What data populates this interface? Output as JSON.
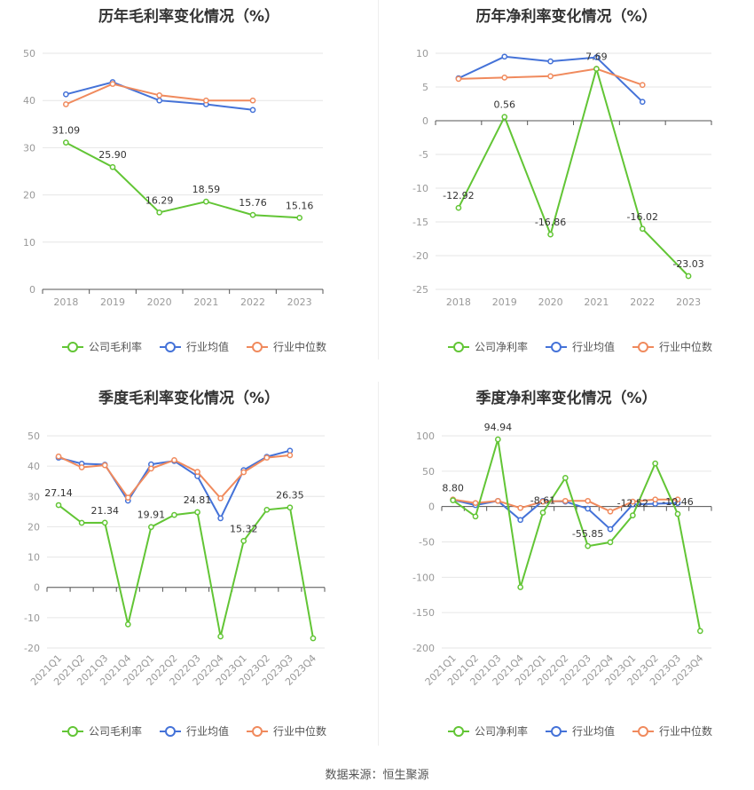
{
  "source": "数据来源：恒生聚源",
  "colors": {
    "company": "#62c535",
    "avg": "#4472d8",
    "median": "#f08a5d"
  },
  "chart_data": [
    {
      "type": "line",
      "title": "历年毛利率变化情况（%）",
      "categories": [
        "2018",
        "2019",
        "2020",
        "2021",
        "2022",
        "2023"
      ],
      "ylim": [
        0,
        50
      ],
      "yticks": [
        0,
        10,
        20,
        30,
        40,
        50
      ],
      "series": [
        {
          "name": "公司毛利率",
          "values": [
            31.09,
            25.9,
            16.29,
            18.59,
            15.76,
            15.16
          ]
        },
        {
          "name": "行业均值",
          "values": [
            41.3,
            43.9,
            40.0,
            39.2,
            38.0,
            null
          ]
        },
        {
          "name": "行业中位数",
          "values": [
            39.2,
            43.5,
            41.1,
            40.0,
            40.0,
            null
          ]
        }
      ],
      "labels": [
        "31.09",
        "25.90",
        "16.29",
        "18.59",
        "15.76",
        "15.16"
      ],
      "rotate_ticks": false
    },
    {
      "type": "line",
      "title": "历年净利率变化情况（%）",
      "categories": [
        "2018",
        "2019",
        "2020",
        "2021",
        "2022",
        "2023"
      ],
      "ylim": [
        -25,
        10
      ],
      "yticks": [
        -25,
        -20,
        -15,
        -10,
        -5,
        0,
        5,
        10
      ],
      "series": [
        {
          "name": "公司净利率",
          "values": [
            -12.92,
            0.56,
            -16.86,
            7.69,
            -16.02,
            -23.03
          ]
        },
        {
          "name": "行业均值",
          "values": [
            6.3,
            9.5,
            8.8,
            9.4,
            2.8,
            null
          ]
        },
        {
          "name": "行业中位数",
          "values": [
            6.2,
            6.4,
            6.6,
            7.7,
            5.3,
            null
          ]
        }
      ],
      "labels": [
        "-12.92",
        "0.56",
        "-16.86",
        "7.69",
        "-16.02",
        "-23.03"
      ],
      "rotate_ticks": false
    },
    {
      "type": "line",
      "title": "季度毛利率变化情况（%）",
      "categories": [
        "2021Q1",
        "2021Q2",
        "2021Q3",
        "2021Q4",
        "2022Q1",
        "2022Q2",
        "2022Q3",
        "2022Q4",
        "2023Q1",
        "2023Q2",
        "2023Q3",
        "2023Q4"
      ],
      "ylim": [
        -20,
        50
      ],
      "yticks": [
        -20,
        -10,
        0,
        10,
        20,
        30,
        40,
        50
      ],
      "series": [
        {
          "name": "公司毛利率",
          "values": [
            27.14,
            21.3,
            21.34,
            -12.2,
            19.91,
            23.9,
            24.81,
            -16.2,
            15.32,
            25.6,
            26.35,
            -16.8
          ]
        },
        {
          "name": "行业均值",
          "values": [
            42.8,
            40.8,
            40.5,
            28.6,
            40.6,
            41.7,
            36.7,
            22.8,
            38.7,
            43.1,
            45.1,
            null
          ]
        },
        {
          "name": "行业中位数",
          "values": [
            43.2,
            39.6,
            40.3,
            29.6,
            39.2,
            42.0,
            38.1,
            29.4,
            38.0,
            42.8,
            43.6,
            null
          ]
        }
      ],
      "labels": [
        "27.14",
        "",
        "21.34",
        "",
        "19.91",
        "",
        "24.81",
        "",
        "15.32",
        "",
        "26.35",
        ""
      ],
      "rotate_ticks": true
    },
    {
      "type": "line",
      "title": "季度净利率变化情况（%）",
      "categories": [
        "2021Q1",
        "2021Q2",
        "2021Q3",
        "2021Q4",
        "2022Q1",
        "2022Q2",
        "2022Q3",
        "2022Q4",
        "2023Q1",
        "2023Q2",
        "2023Q3",
        "2023Q4"
      ],
      "ylim": [
        -200,
        100
      ],
      "yticks": [
        -200,
        -150,
        -100,
        -50,
        0,
        50,
        100
      ],
      "series": [
        {
          "name": "公司净利率",
          "values": [
            8.8,
            -14.0,
            94.94,
            -114.0,
            -8.61,
            40.5,
            -55.85,
            -50.5,
            -12.52,
            61.0,
            -10.46,
            -176.0
          ]
        },
        {
          "name": "行业均值",
          "values": [
            9.5,
            2.0,
            8.0,
            -19.0,
            8.0,
            7.0,
            -3.0,
            -32.0,
            3.0,
            4.0,
            5.0,
            null
          ]
        },
        {
          "name": "行业中位数",
          "values": [
            10.0,
            5.0,
            8.0,
            -2.0,
            7.0,
            8.0,
            8.0,
            -7.0,
            7.0,
            10.0,
            10.0,
            null
          ]
        }
      ],
      "labels": [
        "8.80",
        "",
        "94.94",
        "",
        "-8.61",
        "",
        "-55.85",
        "",
        "-12.52",
        "",
        "-10.46",
        ""
      ],
      "rotate_ticks": true
    }
  ]
}
